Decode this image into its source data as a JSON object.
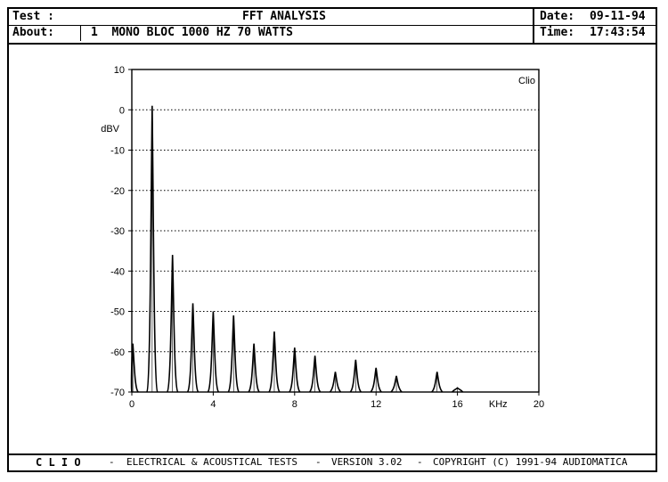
{
  "header": {
    "test_label": "Test :",
    "title": "FFT ANALYSIS",
    "about_label": "About:",
    "about_text": "1  MONO BLOC 1000 HZ 70 WATTS",
    "date_label": "Date:",
    "date_value": "09-11-94",
    "time_label": "Time:",
    "time_value": "17:43:54"
  },
  "footer": {
    "brand": "C L I O",
    "sep1": "-",
    "desc": "ELECTRICAL & ACOUSTICAL TESTS",
    "sep2": "-",
    "version": "VERSION 3.02",
    "sep3": "-",
    "copyright": "COPYRIGHT (C) 1991-94 AUDIOMATICA"
  },
  "chart_data": {
    "type": "line",
    "title": "",
    "watermark": "Clio",
    "xlabel": "KHz",
    "ylabel": "dBV",
    "xlim": [
      0,
      20
    ],
    "ylim": [
      -70,
      10
    ],
    "xticks": [
      "0",
      "4",
      "8",
      "12",
      "16",
      "20"
    ],
    "yticks": [
      "10",
      "0",
      "-10",
      "-20",
      "-30",
      "-40",
      "-50",
      "-60",
      "-70"
    ],
    "grid": "horizontal-dotted",
    "series": [
      {
        "peaks": [
          {
            "freq_khz": 0.05,
            "level_dbv": -58
          },
          {
            "freq_khz": 1,
            "level_dbv": 1
          },
          {
            "freq_khz": 2,
            "level_dbv": -36
          },
          {
            "freq_khz": 3,
            "level_dbv": -48
          },
          {
            "freq_khz": 4,
            "level_dbv": -50
          },
          {
            "freq_khz": 5,
            "level_dbv": -51
          },
          {
            "freq_khz": 6,
            "level_dbv": -58
          },
          {
            "freq_khz": 7,
            "level_dbv": -55
          },
          {
            "freq_khz": 8,
            "level_dbv": -59
          },
          {
            "freq_khz": 9,
            "level_dbv": -61
          },
          {
            "freq_khz": 10,
            "level_dbv": -65
          },
          {
            "freq_khz": 11,
            "level_dbv": -62
          },
          {
            "freq_khz": 12,
            "level_dbv": -64
          },
          {
            "freq_khz": 13,
            "level_dbv": -66
          },
          {
            "freq_khz": 15,
            "level_dbv": -65
          },
          {
            "freq_khz": 16,
            "level_dbv": -69
          }
        ]
      }
    ]
  }
}
